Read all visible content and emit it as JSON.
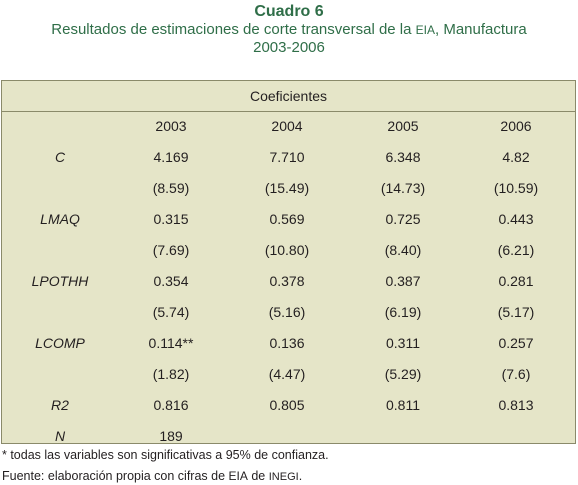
{
  "title": {
    "main": "Cuadro 6",
    "sub_part1": "Resultados de estimaciones de corte transversal de la ",
    "sub_eia": "EIA",
    "sub_part2": ", Manufactura",
    "years": "2003-2006"
  },
  "table": {
    "header": "Coeficientes",
    "years": [
      "2003",
      "2004",
      "2005",
      "2006"
    ],
    "rows": [
      {
        "label": "C",
        "values": [
          "4.169",
          "7.710",
          "6.348",
          "4.82"
        ]
      },
      {
        "label": "",
        "values": [
          "(8.59)",
          "(15.49)",
          "(14.73)",
          "(10.59)"
        ]
      },
      {
        "label": "LMAQ",
        "values": [
          "0.315",
          "0.569",
          "0.725",
          "0.443"
        ]
      },
      {
        "label": "",
        "values": [
          "(7.69)",
          "(10.80)",
          "(8.40)",
          "(6.21)"
        ]
      },
      {
        "label": "LPOTHH",
        "values": [
          "0.354",
          "0.378",
          "0.387",
          "0.281"
        ]
      },
      {
        "label": "",
        "values": [
          "(5.74)",
          "(5.16)",
          "(6.19)",
          "(5.17)"
        ]
      },
      {
        "label": "LCOMP",
        "values": [
          "0.114**",
          "0.136",
          "0.311",
          "0.257"
        ]
      },
      {
        "label": "",
        "values": [
          "(1.82)",
          "(4.47)",
          "(5.29)",
          "(7.6)"
        ]
      },
      {
        "label": "R2",
        "values": [
          "0.816",
          "0.805",
          "0.811",
          "0.813"
        ]
      },
      {
        "label": "N",
        "values": [
          "189",
          "",
          "",
          ""
        ]
      }
    ]
  },
  "footer": {
    "note": "* todas las variables son significativas a 95% de confianza.",
    "source_part1": "Fuente: elaboración propia con cifras de ",
    "source_eia": "EIA",
    "source_part2": " de ",
    "source_inegi": "INEGI",
    "source_part3": "."
  }
}
